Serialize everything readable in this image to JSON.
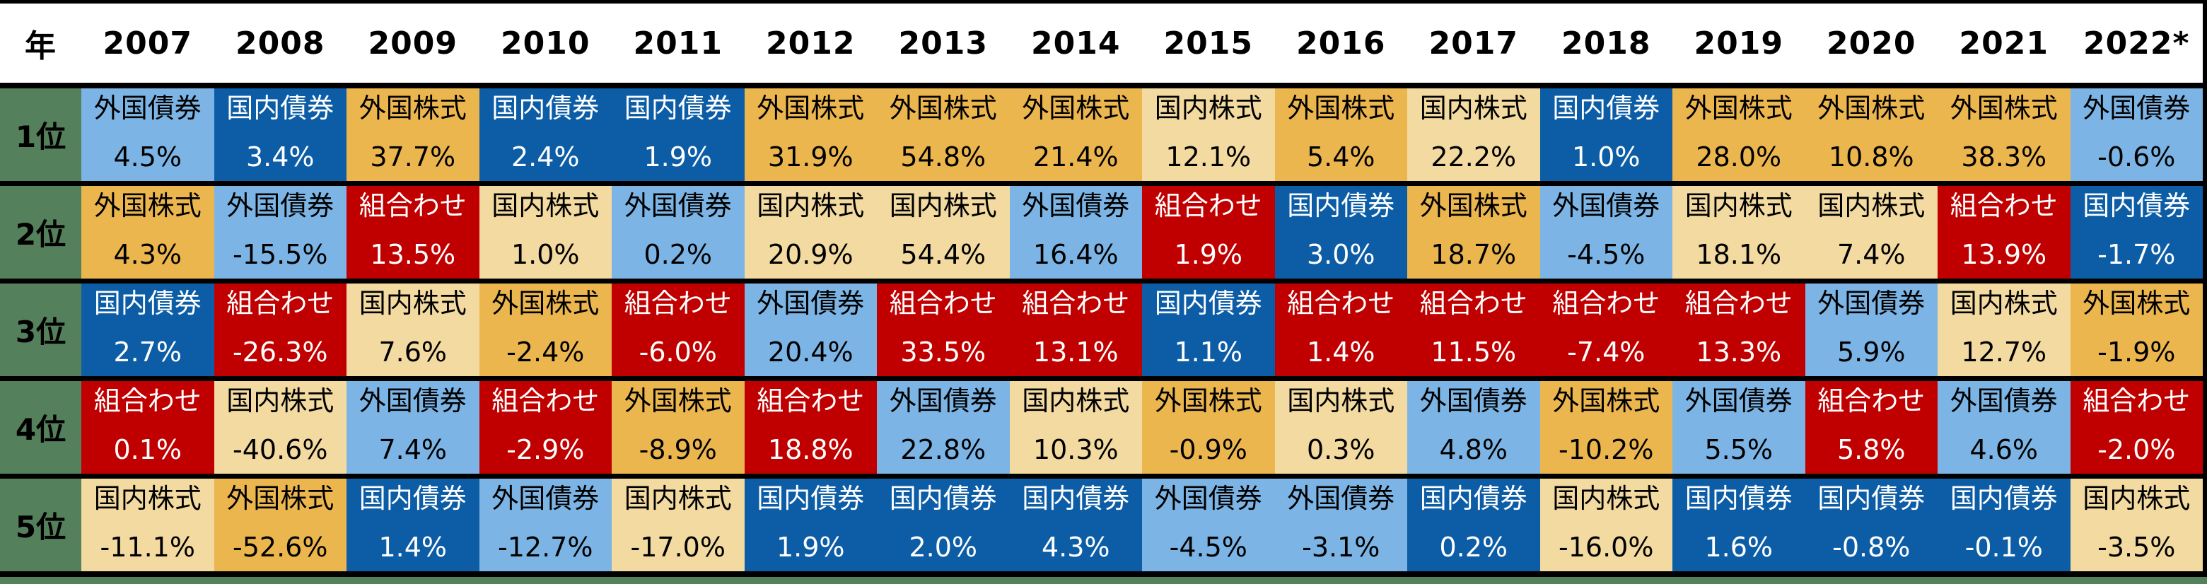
{
  "colors": {
    "page_background": "#54815C",
    "grid_border": "#000000",
    "header_background": "#FFFFFF",
    "header_text": "#000000"
  },
  "asset_types": {
    "foreign_bond": {
      "bg": "#7CB5E5",
      "text": "#000000"
    },
    "domestic_bond": {
      "bg": "#0C5DA6",
      "text": "#FFFFFF"
    },
    "foreign_stock": {
      "bg": "#ECB64F",
      "text": "#000000"
    },
    "domestic_stock": {
      "bg": "#F2DAA0",
      "text": "#000000"
    },
    "mix": {
      "bg": "#C00000",
      "text": "#FFFFFF"
    }
  },
  "chart_data": {
    "type": "table",
    "corner_label": "年",
    "years": [
      "2007",
      "2008",
      "2009",
      "2010",
      "2011",
      "2012",
      "2013",
      "2014",
      "2015",
      "2016",
      "2017",
      "2018",
      "2019",
      "2020",
      "2021",
      "2022*"
    ],
    "ranks": [
      "1位",
      "2位",
      "3位",
      "4位",
      "5位"
    ],
    "rows": [
      {
        "rank": "1位",
        "cells": [
          {
            "asset": "外国債券",
            "value": "4.5%",
            "type": "foreign_bond"
          },
          {
            "asset": "国内債券",
            "value": "3.4%",
            "type": "domestic_bond"
          },
          {
            "asset": "外国株式",
            "value": "37.7%",
            "type": "foreign_stock"
          },
          {
            "asset": "国内債券",
            "value": "2.4%",
            "type": "domestic_bond"
          },
          {
            "asset": "国内債券",
            "value": "1.9%",
            "type": "domestic_bond"
          },
          {
            "asset": "外国株式",
            "value": "31.9%",
            "type": "foreign_stock"
          },
          {
            "asset": "外国株式",
            "value": "54.8%",
            "type": "foreign_stock"
          },
          {
            "asset": "外国株式",
            "value": "21.4%",
            "type": "foreign_stock"
          },
          {
            "asset": "国内株式",
            "value": "12.1%",
            "type": "domestic_stock"
          },
          {
            "asset": "外国株式",
            "value": "5.4%",
            "type": "foreign_stock"
          },
          {
            "asset": "国内株式",
            "value": "22.2%",
            "type": "domestic_stock"
          },
          {
            "asset": "国内債券",
            "value": "1.0%",
            "type": "domestic_bond"
          },
          {
            "asset": "外国株式",
            "value": "28.0%",
            "type": "foreign_stock"
          },
          {
            "asset": "外国株式",
            "value": "10.8%",
            "type": "foreign_stock"
          },
          {
            "asset": "外国株式",
            "value": "38.3%",
            "type": "foreign_stock"
          },
          {
            "asset": "外国債券",
            "value": "-0.6%",
            "type": "foreign_bond"
          }
        ]
      },
      {
        "rank": "2位",
        "cells": [
          {
            "asset": "外国株式",
            "value": "4.3%",
            "type": "foreign_stock"
          },
          {
            "asset": "外国債券",
            "value": "-15.5%",
            "type": "foreign_bond"
          },
          {
            "asset": "組合わせ",
            "value": "13.5%",
            "type": "mix"
          },
          {
            "asset": "国内株式",
            "value": "1.0%",
            "type": "domestic_stock"
          },
          {
            "asset": "外国債券",
            "value": "0.2%",
            "type": "foreign_bond"
          },
          {
            "asset": "国内株式",
            "value": "20.9%",
            "type": "domestic_stock"
          },
          {
            "asset": "国内株式",
            "value": "54.4%",
            "type": "domestic_stock"
          },
          {
            "asset": "外国債券",
            "value": "16.4%",
            "type": "foreign_bond"
          },
          {
            "asset": "組合わせ",
            "value": "1.9%",
            "type": "mix"
          },
          {
            "asset": "国内債券",
            "value": "3.0%",
            "type": "domestic_bond"
          },
          {
            "asset": "外国株式",
            "value": "18.7%",
            "type": "foreign_stock"
          },
          {
            "asset": "外国債券",
            "value": "-4.5%",
            "type": "foreign_bond"
          },
          {
            "asset": "国内株式",
            "value": "18.1%",
            "type": "domestic_stock"
          },
          {
            "asset": "国内株式",
            "value": "7.4%",
            "type": "domestic_stock"
          },
          {
            "asset": "組合わせ",
            "value": "13.9%",
            "type": "mix"
          },
          {
            "asset": "国内債券",
            "value": "-1.7%",
            "type": "domestic_bond"
          }
        ]
      },
      {
        "rank": "3位",
        "cells": [
          {
            "asset": "国内債券",
            "value": "2.7%",
            "type": "domestic_bond"
          },
          {
            "asset": "組合わせ",
            "value": "-26.3%",
            "type": "mix"
          },
          {
            "asset": "国内株式",
            "value": "7.6%",
            "type": "domestic_stock"
          },
          {
            "asset": "外国株式",
            "value": "-2.4%",
            "type": "foreign_stock"
          },
          {
            "asset": "組合わせ",
            "value": "-6.0%",
            "type": "mix"
          },
          {
            "asset": "外国債券",
            "value": "20.4%",
            "type": "foreign_bond"
          },
          {
            "asset": "組合わせ",
            "value": "33.5%",
            "type": "mix"
          },
          {
            "asset": "組合わせ",
            "value": "13.1%",
            "type": "mix"
          },
          {
            "asset": "国内債券",
            "value": "1.1%",
            "type": "domestic_bond"
          },
          {
            "asset": "組合わせ",
            "value": "1.4%",
            "type": "mix"
          },
          {
            "asset": "組合わせ",
            "value": "11.5%",
            "type": "mix"
          },
          {
            "asset": "組合わせ",
            "value": "-7.4%",
            "type": "mix"
          },
          {
            "asset": "組合わせ",
            "value": "13.3%",
            "type": "mix"
          },
          {
            "asset": "外国債券",
            "value": "5.9%",
            "type": "foreign_bond"
          },
          {
            "asset": "国内株式",
            "value": "12.7%",
            "type": "domestic_stock"
          },
          {
            "asset": "外国株式",
            "value": "-1.9%",
            "type": "foreign_stock"
          }
        ]
      },
      {
        "rank": "4位",
        "cells": [
          {
            "asset": "組合わせ",
            "value": "0.1%",
            "type": "mix"
          },
          {
            "asset": "国内株式",
            "value": "-40.6%",
            "type": "domestic_stock"
          },
          {
            "asset": "外国債券",
            "value": "7.4%",
            "type": "foreign_bond"
          },
          {
            "asset": "組合わせ",
            "value": "-2.9%",
            "type": "mix"
          },
          {
            "asset": "外国株式",
            "value": "-8.9%",
            "type": "foreign_stock"
          },
          {
            "asset": "組合わせ",
            "value": "18.8%",
            "type": "mix"
          },
          {
            "asset": "外国債券",
            "value": "22.8%",
            "type": "foreign_bond"
          },
          {
            "asset": "国内株式",
            "value": "10.3%",
            "type": "domestic_stock"
          },
          {
            "asset": "外国株式",
            "value": "-0.9%",
            "type": "foreign_stock"
          },
          {
            "asset": "国内株式",
            "value": "0.3%",
            "type": "domestic_stock"
          },
          {
            "asset": "外国債券",
            "value": "4.8%",
            "type": "foreign_bond"
          },
          {
            "asset": "外国株式",
            "value": "-10.2%",
            "type": "foreign_stock"
          },
          {
            "asset": "外国債券",
            "value": "5.5%",
            "type": "foreign_bond"
          },
          {
            "asset": "組合わせ",
            "value": "5.8%",
            "type": "mix"
          },
          {
            "asset": "外国債券",
            "value": "4.6%",
            "type": "foreign_bond"
          },
          {
            "asset": "組合わせ",
            "value": "-2.0%",
            "type": "mix"
          }
        ]
      },
      {
        "rank": "5位",
        "cells": [
          {
            "asset": "国内株式",
            "value": "-11.1%",
            "type": "domestic_stock"
          },
          {
            "asset": "外国株式",
            "value": "-52.6%",
            "type": "foreign_stock"
          },
          {
            "asset": "国内債券",
            "value": "1.4%",
            "type": "domestic_bond"
          },
          {
            "asset": "外国債券",
            "value": "-12.7%",
            "type": "foreign_bond"
          },
          {
            "asset": "国内株式",
            "value": "-17.0%",
            "type": "domestic_stock"
          },
          {
            "asset": "国内債券",
            "value": "1.9%",
            "type": "domestic_bond"
          },
          {
            "asset": "国内債券",
            "value": "2.0%",
            "type": "domestic_bond"
          },
          {
            "asset": "国内債券",
            "value": "4.3%",
            "type": "domestic_bond"
          },
          {
            "asset": "外国債券",
            "value": "-4.5%",
            "type": "foreign_bond"
          },
          {
            "asset": "外国債券",
            "value": "-3.1%",
            "type": "foreign_bond"
          },
          {
            "asset": "国内債券",
            "value": "0.2%",
            "type": "domestic_bond"
          },
          {
            "asset": "国内株式",
            "value": "-16.0%",
            "type": "domestic_stock"
          },
          {
            "asset": "国内債券",
            "value": "1.6%",
            "type": "domestic_bond"
          },
          {
            "asset": "国内債券",
            "value": "-0.8%",
            "type": "domestic_bond"
          },
          {
            "asset": "国内債券",
            "value": "-0.1%",
            "type": "domestic_bond"
          },
          {
            "asset": "国内株式",
            "value": "-3.5%",
            "type": "domestic_stock"
          }
        ]
      }
    ]
  }
}
